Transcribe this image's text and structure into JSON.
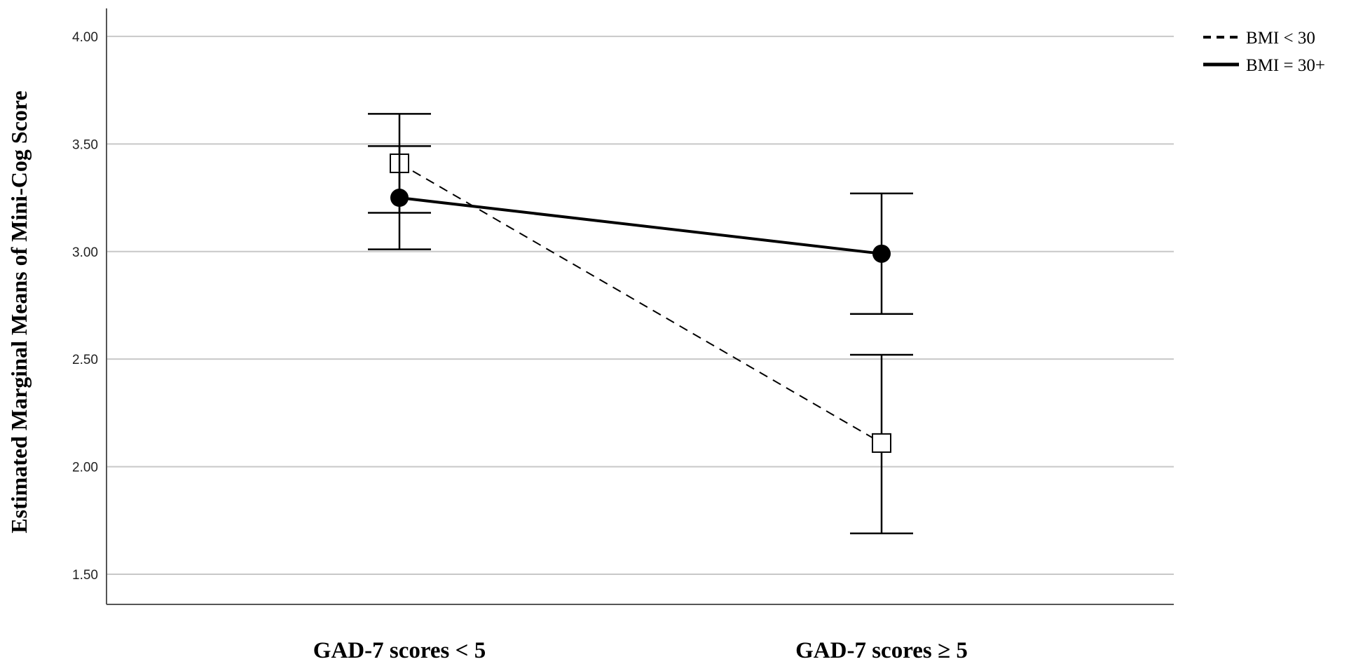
{
  "chart_data": {
    "type": "line",
    "title": "",
    "xlabel": "",
    "ylabel": "Estimated Marginal Means of Mini-Cog Score",
    "categories": [
      "GAD-7 scores < 5",
      "GAD-7 scores ≥ 5"
    ],
    "y_ticks": [
      "1.50",
      "2.00",
      "2.50",
      "3.00",
      "3.50",
      "4.00"
    ],
    "ylim": [
      1.36,
      4.13
    ],
    "grid": true,
    "legend_position": "top-right",
    "series": [
      {
        "name": "BMI < 30",
        "line_style": "dashed",
        "marker": "open-square",
        "values": [
          3.41,
          2.11
        ],
        "error_low": [
          3.18,
          1.69
        ],
        "error_high": [
          3.64,
          2.52
        ]
      },
      {
        "name": "BMI = 30+",
        "line_style": "solid",
        "marker": "filled-circle",
        "values": [
          3.25,
          2.99
        ],
        "error_low": [
          3.01,
          2.71
        ],
        "error_high": [
          3.49,
          3.27
        ]
      }
    ],
    "colors": {
      "line": "#000000",
      "grid": "#c8c8c8",
      "axis": "#555555"
    }
  }
}
